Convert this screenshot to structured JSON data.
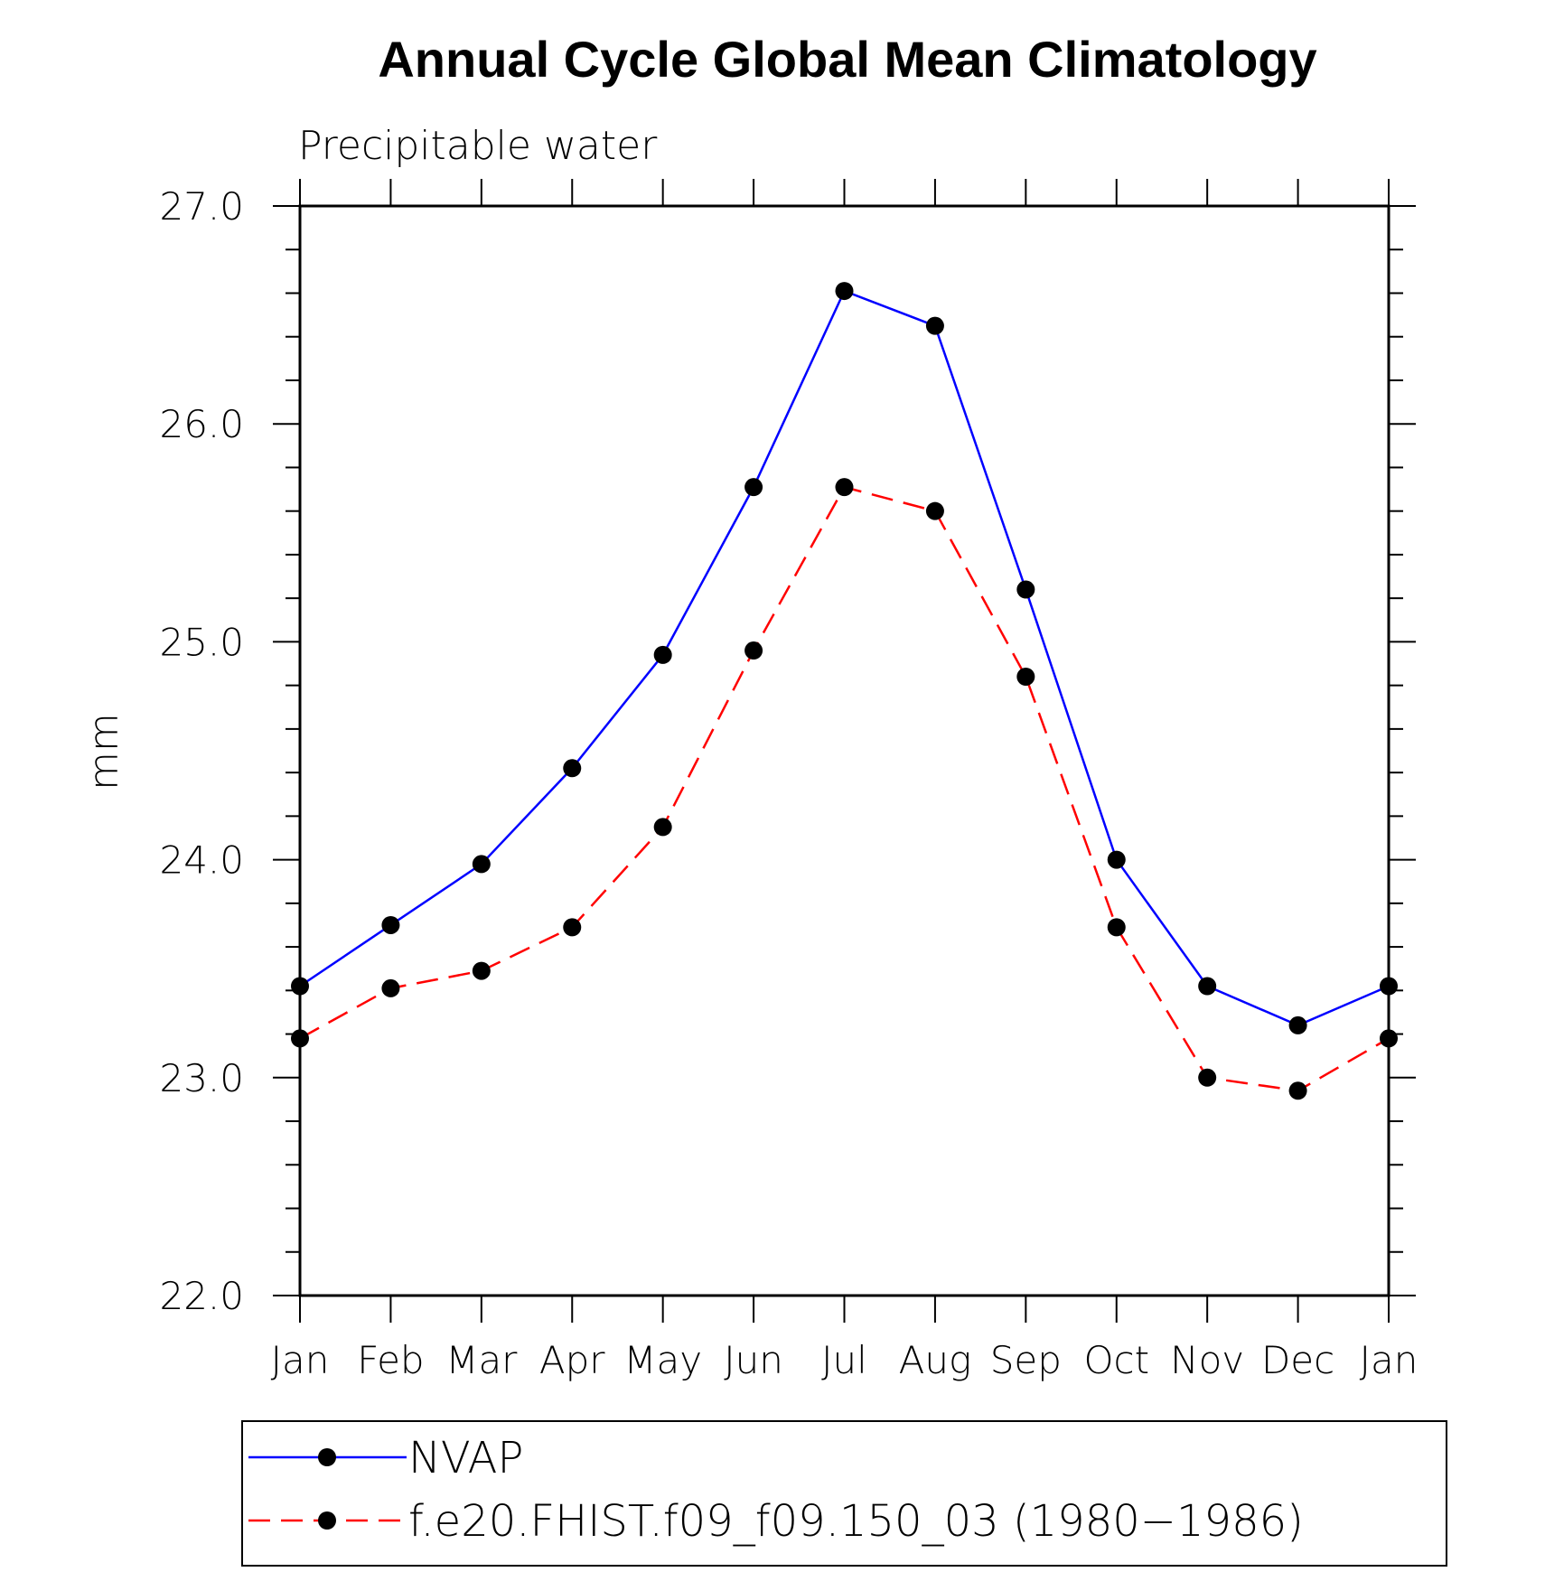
{
  "chart_data": {
    "type": "line",
    "title": "Annual Cycle Global Mean Climatology",
    "subtitle": "Precipitable water",
    "xlabel": "",
    "ylabel": "mm",
    "categories": [
      "Jan",
      "Feb",
      "Mar",
      "Apr",
      "May",
      "Jun",
      "Jul",
      "Aug",
      "Sep",
      "Oct",
      "Nov",
      "Dec",
      "Jan"
    ],
    "ylim": [
      22.0,
      27.0
    ],
    "yticks": [
      "22.0",
      "23.0",
      "24.0",
      "25.0",
      "26.0",
      "27.0"
    ],
    "grid": false,
    "legend_position": "bottom",
    "series": [
      {
        "name": "NVAP",
        "color": "#0000ff",
        "dash": "solid",
        "marker": "filled-circle",
        "values": [
          23.42,
          23.7,
          23.98,
          24.42,
          24.94,
          25.71,
          26.61,
          26.45,
          25.24,
          24.0,
          23.42,
          23.24,
          23.42
        ]
      },
      {
        "name": "f.e20.FHIST.f09_f09.150_03 (1980−1986)",
        "color": "#ff0000",
        "dash": "dashed",
        "marker": "filled-circle",
        "values": [
          23.18,
          23.41,
          23.49,
          23.69,
          24.15,
          24.96,
          25.71,
          25.6,
          24.84,
          23.69,
          23.0,
          22.94,
          23.18
        ]
      }
    ]
  }
}
